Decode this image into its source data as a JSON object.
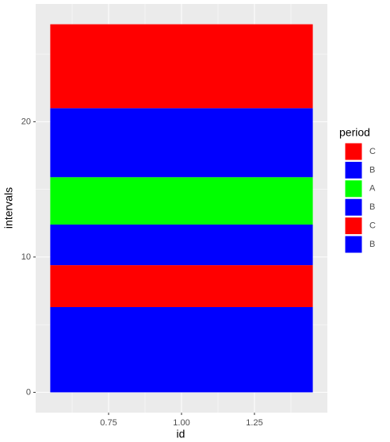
{
  "chart_data": {
    "type": "stacked_bar",
    "x": [
      1
    ],
    "bar_width": 0.9,
    "x_label": "id",
    "y_label": "intervals",
    "legend_title": "period",
    "xlim": [
      0.5,
      1.5
    ],
    "xticks": [
      0.75,
      {
        "value": 1,
        "label": "1.00"
      },
      1.25
    ],
    "ylim": [
      -1.5,
      28.7
    ],
    "yticks": [
      0,
      10,
      20
    ],
    "grid": true,
    "legend": "right",
    "series": [
      {
        "name": "B",
        "color": "#0000ff",
        "values": [
          6.3
        ]
      },
      {
        "name": "C",
        "color": "#ff0000",
        "values": [
          3.1
        ]
      },
      {
        "name": "B",
        "color": "#0000ff",
        "values": [
          3.0
        ]
      },
      {
        "name": "A",
        "color": "#00ff00",
        "values": [
          3.5
        ]
      },
      {
        "name": "B",
        "color": "#0000ff",
        "values": [
          5.1
        ]
      },
      {
        "name": "C",
        "color": "#ff0000",
        "values": [
          6.2
        ]
      }
    ]
  }
}
